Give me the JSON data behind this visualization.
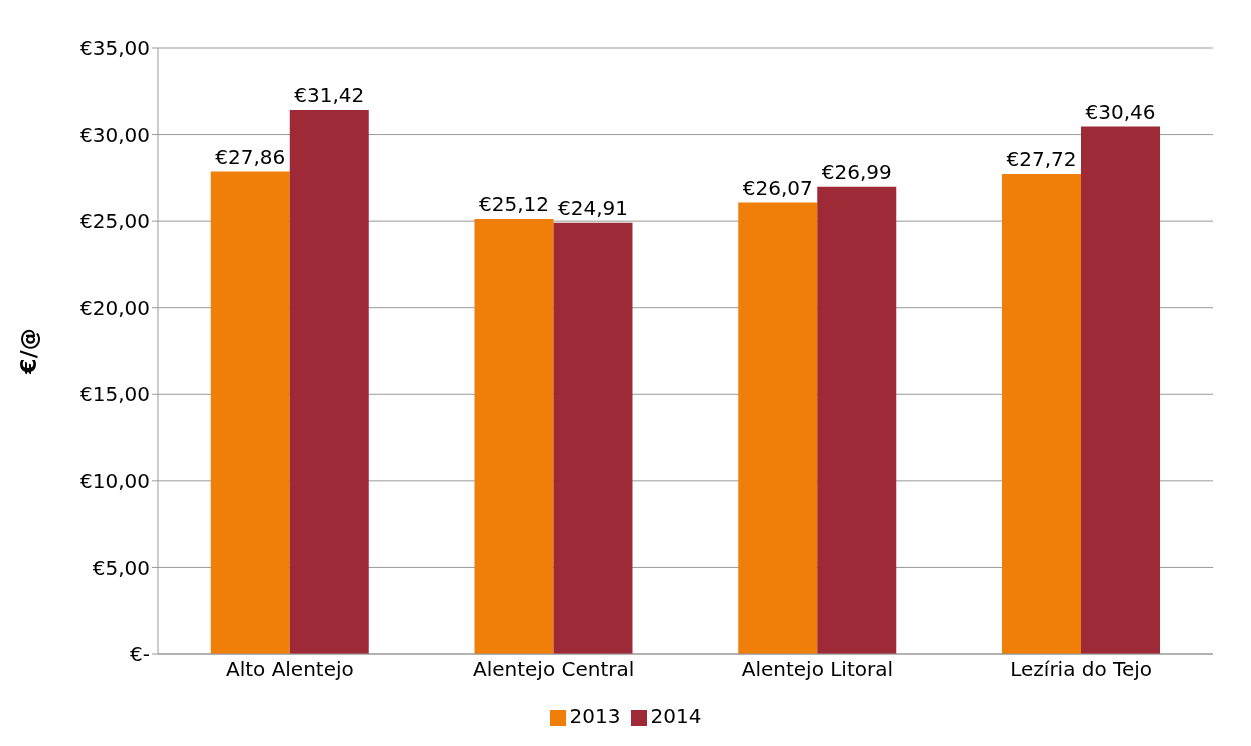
{
  "chart_data": {
    "type": "bar",
    "ylabel": "€/@",
    "categories": [
      "Alto Alentejo",
      "Alentejo Central",
      "Alentejo Litoral",
      "Lezíria do Tejo"
    ],
    "series": [
      {
        "name": "2013",
        "color": "#f07f09",
        "values": [
          27.86,
          25.12,
          26.07,
          27.72
        ],
        "value_labels": [
          "€27,86",
          "€25,12",
          "€26,07",
          "€27,72"
        ]
      },
      {
        "name": "2014",
        "color": "#9e2a37",
        "values": [
          31.42,
          24.91,
          26.99,
          30.46
        ],
        "value_labels": [
          "€31,42",
          "€24,91",
          "€26,99",
          "€30,46"
        ]
      }
    ],
    "ylim": [
      0,
      35
    ],
    "yticks": [
      {
        "value": 0,
        "label": "€-"
      },
      {
        "value": 5,
        "label": "€5,00"
      },
      {
        "value": 10,
        "label": "€10,00"
      },
      {
        "value": 15,
        "label": "€15,00"
      },
      {
        "value": 20,
        "label": "€20,00"
      },
      {
        "value": 25,
        "label": "€25,00"
      },
      {
        "value": 30,
        "label": "€30,00"
      },
      {
        "value": 35,
        "label": "€35,00"
      }
    ],
    "grid": "y",
    "legend": "bottom"
  }
}
